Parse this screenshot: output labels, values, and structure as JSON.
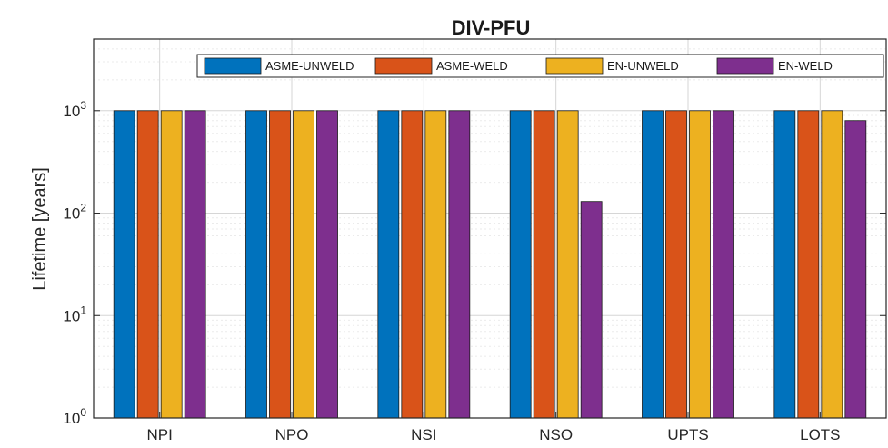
{
  "chart_data": {
    "type": "bar",
    "title": "DIV-PFU",
    "xlabel": "",
    "ylabel": "Lifetime [years]",
    "yscale": "log",
    "ylim": [
      1,
      5000
    ],
    "grid": true,
    "legend_position": "top",
    "categories": [
      "NPI",
      "NPO",
      "NSI",
      "NSO",
      "UPTS",
      "LOTS"
    ],
    "y_ticks": [
      {
        "value": 1,
        "base": "10",
        "exp": "0"
      },
      {
        "value": 10,
        "base": "10",
        "exp": "1"
      },
      {
        "value": 100,
        "base": "10",
        "exp": "2"
      },
      {
        "value": 1000,
        "base": "10",
        "exp": "3"
      }
    ],
    "series": [
      {
        "name": "ASME-UNWELD",
        "color": "#0072BD",
        "values": [
          1000,
          1000,
          1000,
          1000,
          1000,
          1000
        ]
      },
      {
        "name": "ASME-WELD",
        "color": "#D95319",
        "values": [
          1000,
          1000,
          1000,
          1000,
          1000,
          1000
        ]
      },
      {
        "name": "EN-UNWELD",
        "color": "#EDB120",
        "values": [
          1000,
          1000,
          1000,
          1000,
          1000,
          1000
        ]
      },
      {
        "name": "EN-WELD",
        "color": "#7E2F8E",
        "values": [
          1000,
          1000,
          1000,
          130,
          1000,
          800
        ]
      }
    ]
  }
}
